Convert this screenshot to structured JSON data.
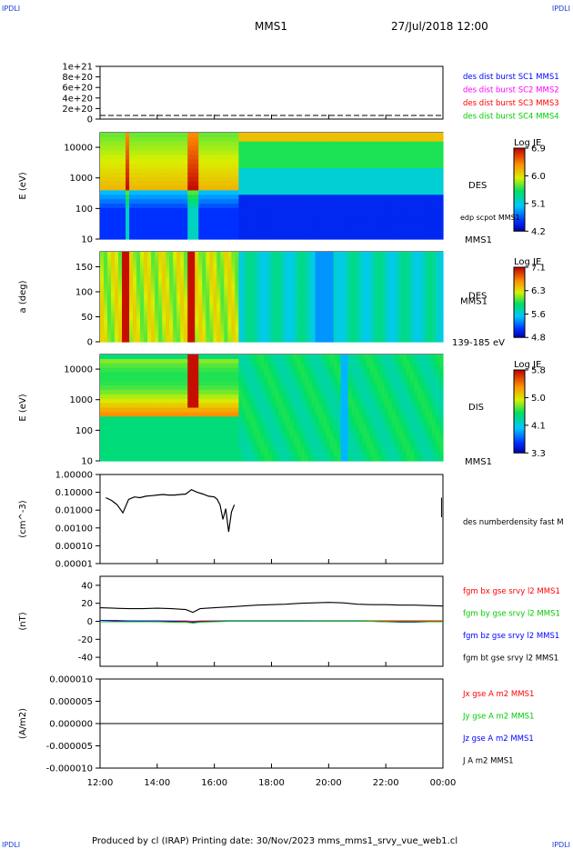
{
  "header": {
    "corner_tl": "IPDLI",
    "corner_tr": "IPDLI",
    "mission": "MMS1",
    "datetime": "27/Jul/2018 12:00"
  },
  "footer": {
    "text": "Produced by cl (IRAP)   Printing date: 30/Nov/2023   mms_mms1_srvy_vue_web1.cl",
    "corner_bl": "IPDLI",
    "corner_br": "IPDLI"
  },
  "chart_data": [
    {
      "type": "line",
      "panel": "des-dist-burst",
      "yticks": [
        "1e+21",
        "8e+20",
        "6e+20",
        "4e+20",
        "2e+20",
        "0"
      ],
      "ylim": [
        0,
        1e+21
      ],
      "legend": [
        {
          "label": "des dist burst SC1 MMS1",
          "color": "#0000ff"
        },
        {
          "label": "des dist burst SC2 MMS2",
          "color": "#ff00ff"
        },
        {
          "label": "des dist burst SC3 MMS3",
          "color": "#ff0000"
        },
        {
          "label": "des dist burst SC4 MMS4",
          "color": "#00cc00"
        }
      ],
      "series": [
        {
          "values": [
            0,
            0
          ]
        }
      ]
    },
    {
      "type": "heatmap",
      "panel": "des-energy",
      "ylabel": "E (eV)",
      "yscale": "log",
      "ylim": [
        10,
        30000
      ],
      "yticks": [
        "10000",
        "1000",
        "100",
        "10"
      ],
      "label": "DES",
      "sublabel": "edp scpot MMS1",
      "bottom_label": "MMS1",
      "colorbar": {
        "title": "Log JE",
        "ticks": [
          "6.9",
          "6.0",
          "5.1",
          "4.2"
        ],
        "range": [
          4.2,
          6.9
        ]
      }
    },
    {
      "type": "heatmap",
      "panel": "des-pitch",
      "ylabel": "a (deg)",
      "ylim": [
        0,
        180
      ],
      "yticks": [
        "150",
        "100",
        "50",
        "0"
      ],
      "label": "DES",
      "sublabel": "MMS1",
      "bottom_label": "139-185 eV",
      "colorbar": {
        "title": "Log JE",
        "ticks": [
          "7.1",
          "6.3",
          "5.6",
          "4.8"
        ],
        "range": [
          4.8,
          7.1
        ]
      }
    },
    {
      "type": "heatmap",
      "panel": "dis-energy",
      "ylabel": "E (eV)",
      "yscale": "log",
      "ylim": [
        10,
        30000
      ],
      "yticks": [
        "10000",
        "1000",
        "100",
        "10"
      ],
      "label": "DIS",
      "bottom_label": "MMS1",
      "colorbar": {
        "title": "Log JE",
        "ticks": [
          "5.8",
          "5.0",
          "4.1",
          "3.3"
        ],
        "range": [
          3.3,
          5.8
        ]
      }
    },
    {
      "type": "line",
      "panel": "density",
      "ylabel": "(cm^-3)",
      "yscale": "log",
      "ylim": [
        1e-05,
        1.0
      ],
      "yticks": [
        "1.00000",
        "0.10000",
        "0.01000",
        "0.00100",
        "0.00010",
        "0.00001"
      ],
      "legend": [
        {
          "label": "des numberdensity fast M",
          "color": "#000000"
        }
      ],
      "series": [
        {
          "name": "des numberdensity fast M",
          "x": [
            12.2,
            12.4,
            12.6,
            12.8,
            13.0,
            13.2,
            13.4,
            13.6,
            13.8,
            14.0,
            14.2,
            14.4,
            14.6,
            14.8,
            15.0,
            15.2,
            15.4,
            15.6,
            15.8,
            16.0,
            16.1,
            16.2,
            16.3,
            16.4,
            16.5,
            16.6,
            16.7
          ],
          "values": [
            0.05,
            0.035,
            0.02,
            0.007,
            0.04,
            0.055,
            0.05,
            0.06,
            0.065,
            0.07,
            0.075,
            0.07,
            0.07,
            0.075,
            0.08,
            0.14,
            0.1,
            0.08,
            0.06,
            0.055,
            0.04,
            0.02,
            0.003,
            0.012,
            0.0006,
            0.008,
            0.02
          ]
        }
      ]
    },
    {
      "type": "line",
      "panel": "magnetic-field",
      "ylabel": "(nT)",
      "ylim": [
        -50,
        50
      ],
      "yticks": [
        "40",
        "20",
        "0",
        "-20",
        "-40"
      ],
      "legend": [
        {
          "label": "fgm bx gse srvy l2 MMS1",
          "color": "#ff0000"
        },
        {
          "label": "fgm by gse srvy l2 MMS1",
          "color": "#00cc00"
        },
        {
          "label": "fgm bz gse srvy l2 MMS1",
          "color": "#0000ff"
        },
        {
          "label": "fgm bt gse srvy l2 MMS1",
          "color": "#000000"
        }
      ],
      "x": [
        12,
        12.5,
        13,
        13.5,
        14,
        14.5,
        15,
        15.25,
        15.5,
        16,
        16.5,
        17,
        17.5,
        18,
        18.5,
        19,
        19.5,
        20,
        20.5,
        21,
        21.5,
        22,
        22.5,
        23,
        23.5,
        24
      ],
      "series": [
        {
          "name": "bt",
          "values": [
            15,
            14.5,
            14,
            14,
            14.5,
            14,
            13,
            10,
            14,
            15,
            16,
            17,
            18,
            18.5,
            19,
            20,
            20.5,
            21,
            20.5,
            19,
            18.5,
            18.5,
            18,
            18,
            17.5,
            17
          ]
        },
        {
          "name": "bx",
          "values": [
            1,
            1,
            0.5,
            0.5,
            0.5,
            0.3,
            0.3,
            0,
            0.3,
            0.5,
            0.5,
            0.5,
            0.5,
            0.5,
            0.5,
            0.5,
            0.5,
            0.5,
            0.5,
            0.5,
            0.5,
            0.5,
            0.5,
            0.5,
            0.5,
            0.5
          ]
        },
        {
          "name": "bz",
          "values": [
            1,
            0.5,
            0.5,
            0.3,
            0.3,
            0,
            -0.5,
            -1,
            -0.5,
            0,
            0.5,
            0.5,
            0.5,
            0.5,
            0.5,
            0.5,
            0.3,
            0.3,
            0.3,
            0.3,
            0,
            -0.5,
            -1,
            -1,
            -0.5,
            -0.5
          ]
        },
        {
          "name": "by",
          "values": [
            -0.5,
            -0.5,
            -0.5,
            -0.5,
            -0.5,
            -1,
            -1,
            -2,
            -1,
            -0.5,
            0,
            0,
            0,
            0,
            0,
            0,
            0,
            0,
            0,
            0,
            0,
            -0.5,
            -0.5,
            -0.5,
            -0.5,
            -0.5
          ]
        }
      ]
    },
    {
      "type": "line",
      "panel": "current-density",
      "ylabel": "(A/m2)",
      "ylim": [
        -1e-05,
        1e-05
      ],
      "yticks": [
        "0.000010",
        "0.000005",
        "0.000000",
        "-0.000005",
        "-0.000010"
      ],
      "legend": [
        {
          "label": "Jx gse A m2 MMS1",
          "color": "#ff0000"
        },
        {
          "label": "Jy gse A m2 MMS1",
          "color": "#00cc00"
        },
        {
          "label": "Jz gse A m2 MMS1",
          "color": "#0000ff"
        },
        {
          "label": "J A m2 MMS1",
          "color": "#000000"
        }
      ],
      "series": [
        {
          "values": [
            0,
            0
          ]
        }
      ]
    }
  ],
  "xaxis": {
    "ticks": [
      "12:00",
      "14:00",
      "16:00",
      "18:00",
      "20:00",
      "22:00",
      "00:00"
    ],
    "range": [
      12,
      24
    ]
  }
}
